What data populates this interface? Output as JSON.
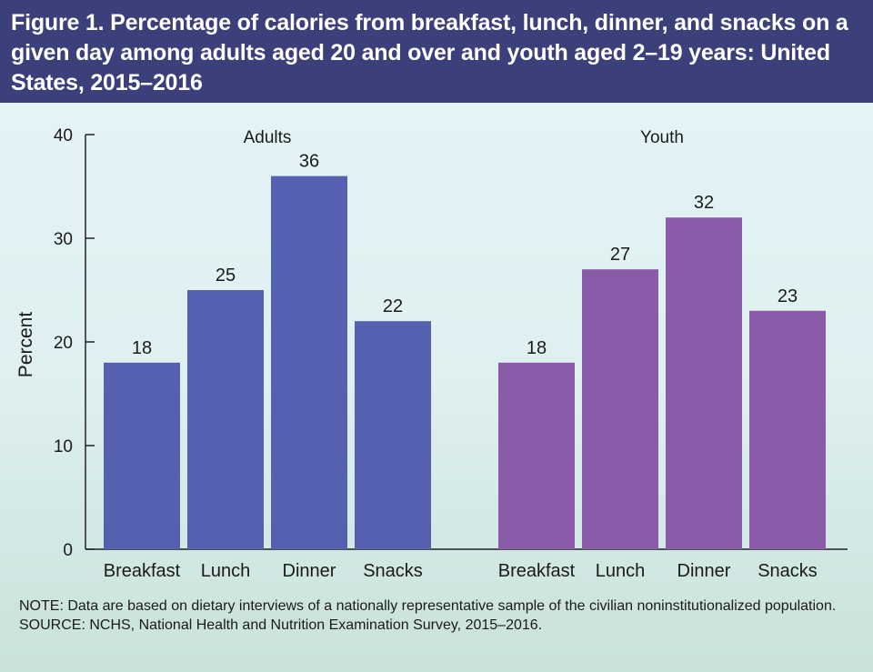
{
  "header": {
    "title": "Figure 1. Percentage of calories from breakfast, lunch, dinner, and snacks on a given day among adults aged 20 and over and youth aged 2–19 years: United States, 2015–2016"
  },
  "chart_data": {
    "type": "bar",
    "title": "Figure 1. Percentage of calories from breakfast, lunch, dinner, and snacks on a given day among adults aged 20 and over and youth aged 2–19 years: United States, 2015–2016",
    "ylabel": "Percent",
    "xlabel": "",
    "ylim": [
      0,
      40
    ],
    "yticks": [
      0,
      10,
      20,
      30,
      40
    ],
    "categories": [
      "Breakfast",
      "Lunch",
      "Dinner",
      "Snacks"
    ],
    "series": [
      {
        "name": "Adults",
        "values": [
          18,
          25,
          36,
          22
        ],
        "color": "#5561b0"
      },
      {
        "name": "Youth",
        "values": [
          18,
          27,
          32,
          23
        ],
        "color": "#8b5aa9"
      }
    ],
    "grid": false,
    "data_labels": true
  },
  "notes": {
    "note": "NOTE: Data are based on dietary interviews of a nationally representative sample of the civilian noninstitutionalized population.",
    "source": "SOURCE: NCHS, National Health and Nutrition Examination Survey, 2015–2016."
  }
}
